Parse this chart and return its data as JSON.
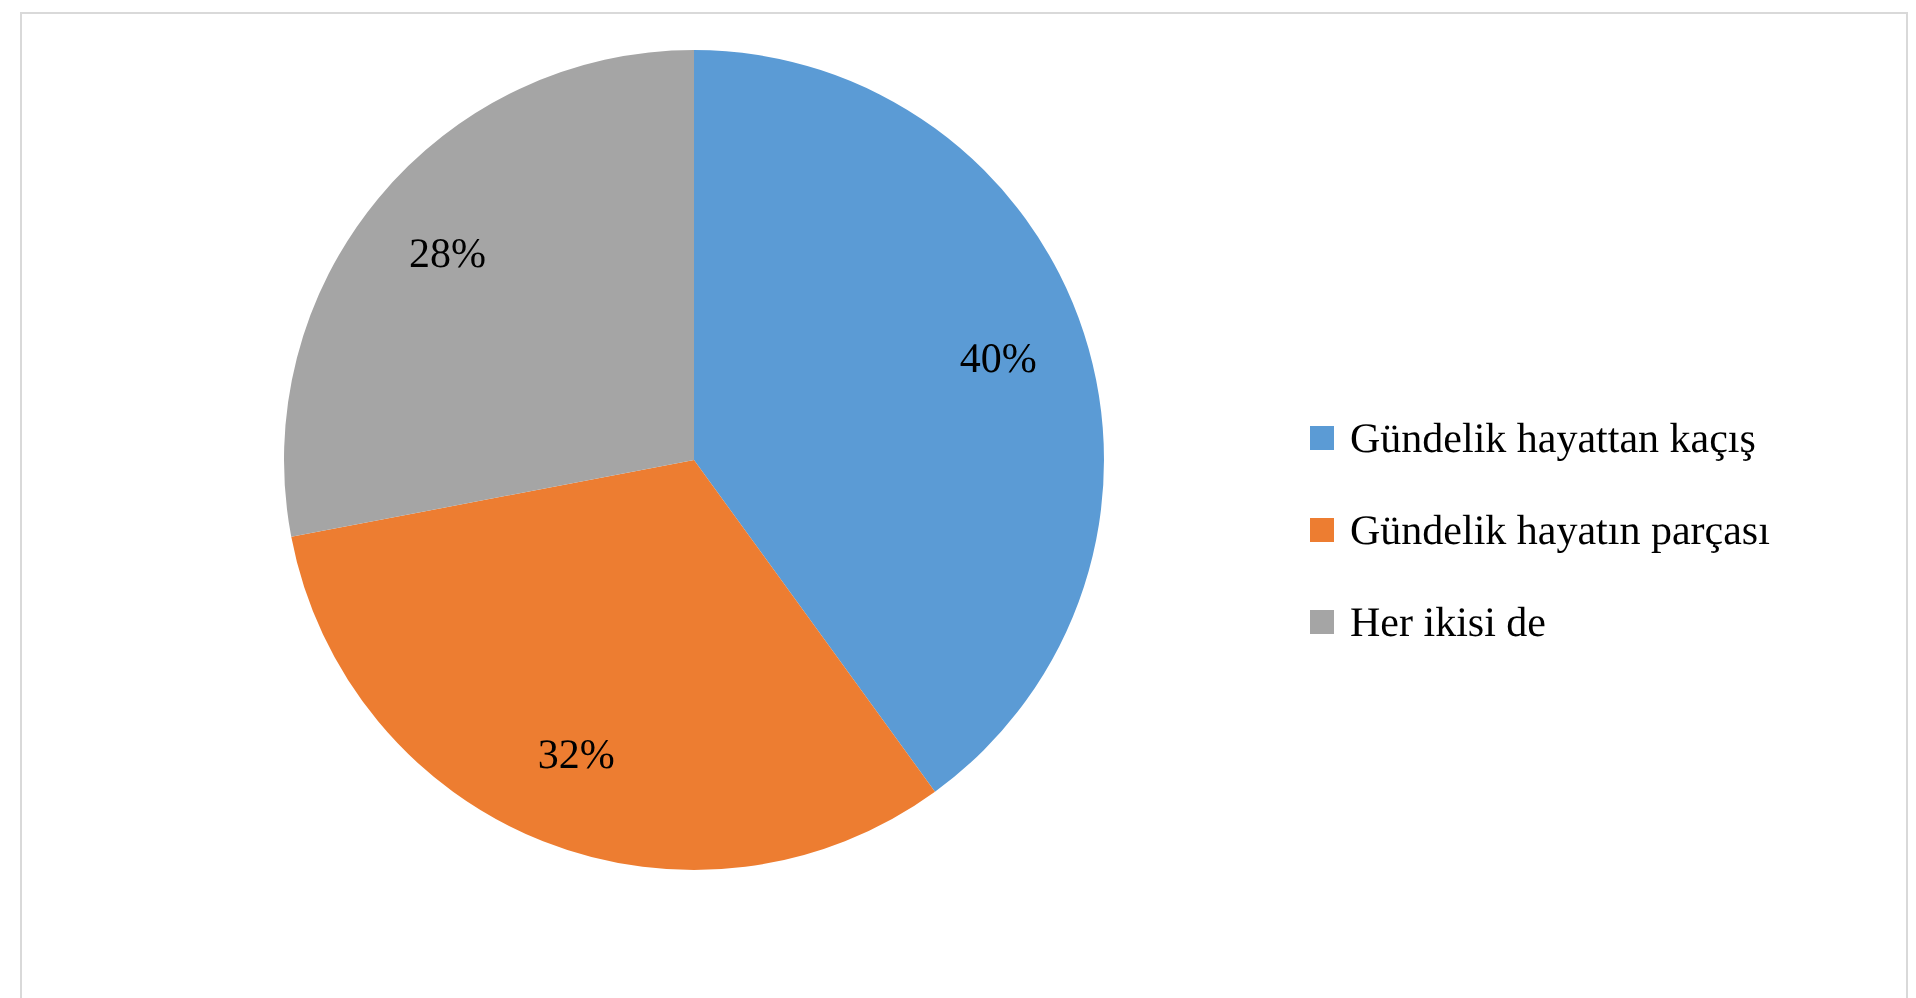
{
  "chart_data": {
    "type": "pie",
    "categories": [
      "Gündelik hayattan kaçış",
      "Gündelik hayatın parçası",
      "Her ikisi de"
    ],
    "values": [
      40,
      32,
      28
    ],
    "colors": [
      "#5b9bd5",
      "#ed7d31",
      "#a5a5a5"
    ],
    "value_labels": [
      "40%",
      "32%",
      "28%"
    ],
    "legend": "right"
  }
}
